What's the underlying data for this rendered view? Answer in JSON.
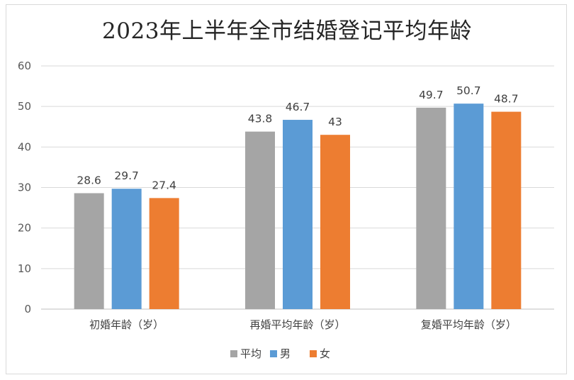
{
  "chart_data": {
    "type": "bar",
    "title": "2023年上半年全市结婚登记平均年龄",
    "categories": [
      "初婚年龄（岁）",
      "再婚平均年龄（岁）",
      "复婚平均年龄（岁）"
    ],
    "series": [
      {
        "name": "平均",
        "color": "#a5a5a5",
        "values": [
          28.6,
          43.8,
          49.7
        ],
        "labels": [
          "28.6",
          "43.8",
          "49.7"
        ]
      },
      {
        "name": "男",
        "color": "#5b9bd5",
        "values": [
          29.7,
          46.7,
          50.7
        ],
        "labels": [
          "29.7",
          "46.7",
          "50.7"
        ]
      },
      {
        "name": "女",
        "color": "#ed7d31",
        "values": [
          27.4,
          43,
          48.7
        ],
        "labels": [
          "27.4",
          "43",
          "48.7"
        ]
      }
    ],
    "ylim": [
      0,
      60
    ],
    "yticks": [
      "0",
      "10",
      "20",
      "30",
      "40",
      "50",
      "60"
    ],
    "grid": true,
    "legend": "bottom"
  }
}
